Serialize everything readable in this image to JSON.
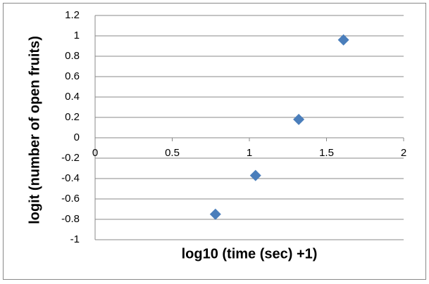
{
  "chart_data": {
    "type": "scatter",
    "x_label": "log10 (time (sec) +1)",
    "y_label": "logit (number of open fruits)",
    "x": [
      0.78,
      1.04,
      1.32,
      1.61
    ],
    "values": [
      -0.75,
      -0.37,
      0.18,
      0.96
    ],
    "color": "#4a7ebb",
    "xlim": [
      0,
      2
    ],
    "xticks": [
      0,
      0.5,
      1,
      1.5,
      2
    ],
    "ylim": [
      -1,
      1.2
    ],
    "yticks": [
      -1,
      -0.8,
      -0.6,
      -0.4,
      -0.2,
      0,
      0.2,
      0.4,
      0.6,
      0.8,
      1,
      1.2
    ],
    "grid": true
  }
}
